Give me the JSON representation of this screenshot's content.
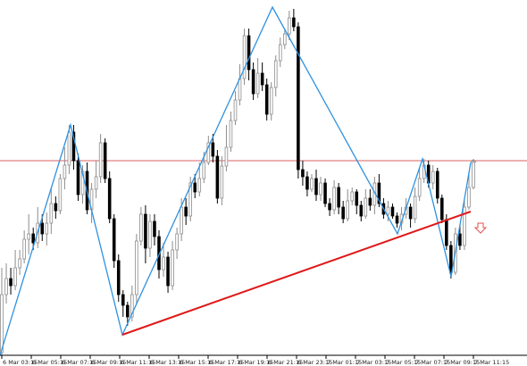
{
  "chart_data": {
    "type": "candlestick",
    "x_tick_labels": [
      "6 Mar 03:15",
      "6 Mar 05:15",
      "6 Mar 07:15",
      "6 Mar 09:15",
      "6 Mar 11:15",
      "6 Mar 13:15",
      "6 Mar 15:15",
      "6 Mar 17:15",
      "6 Mar 19:15",
      "6 Mar 21:15",
      "6 Mar 23:15",
      "7 Mar 01:15",
      "7 Mar 03:15",
      "7 Mar 05:15",
      "7 Mar 07:15",
      "7 Mar 09:15",
      "7 Mar 11:15"
    ],
    "ylim": [
      0,
      410
    ],
    "candles": [
      [
        395,
        330,
        400,
        300
      ],
      [
        330,
        312,
        340,
        295
      ],
      [
        312,
        320,
        330,
        300
      ],
      [
        320,
        300,
        325,
        280
      ],
      [
        300,
        290,
        308,
        280
      ],
      [
        290,
        268,
        295,
        258
      ],
      [
        268,
        262,
        285,
        240
      ],
      [
        262,
        272,
        280,
        255
      ],
      [
        272,
        250,
        278,
        232
      ],
      [
        250,
        262,
        270,
        240
      ],
      [
        262,
        250,
        275,
        238
      ],
      [
        250,
        228,
        262,
        210
      ],
      [
        228,
        236,
        245,
        220
      ],
      [
        236,
        200,
        240,
        195
      ],
      [
        200,
        185,
        212,
        165
      ],
      [
        185,
        148,
        195,
        140
      ],
      [
        148,
        180,
        190,
        140
      ],
      [
        180,
        218,
        225,
        172
      ],
      [
        218,
        192,
        228,
        185
      ],
      [
        192,
        235,
        240,
        182
      ],
      [
        235,
        212,
        250,
        205
      ],
      [
        212,
        198,
        222,
        180
      ],
      [
        198,
        160,
        205,
        150
      ],
      [
        160,
        200,
        205,
        155
      ],
      [
        200,
        245,
        250,
        192
      ],
      [
        245,
        292,
        300,
        240
      ],
      [
        292,
        330,
        338,
        285
      ],
      [
        330,
        342,
        355,
        325
      ],
      [
        342,
        355,
        365,
        338
      ],
      [
        355,
        330,
        360,
        320
      ],
      [
        330,
        270,
        340,
        262
      ],
      [
        270,
        240,
        275,
        232
      ],
      [
        240,
        278,
        295,
        230
      ],
      [
        278,
        248,
        288,
        240
      ],
      [
        248,
        265,
        275,
        240
      ],
      [
        265,
        302,
        312,
        258
      ],
      [
        302,
        288,
        310,
        272
      ],
      [
        288,
        320,
        328,
        282
      ],
      [
        320,
        280,
        325,
        270
      ],
      [
        280,
        262,
        290,
        255
      ],
      [
        262,
        232,
        270,
        222
      ],
      [
        232,
        242,
        252,
        222
      ],
      [
        242,
        205,
        248,
        198
      ],
      [
        205,
        215,
        222,
        195
      ],
      [
        215,
        200,
        220,
        182
      ],
      [
        200,
        182,
        205,
        170
      ],
      [
        182,
        160,
        185,
        152
      ],
      [
        160,
        175,
        182,
        150
      ],
      [
        175,
        222,
        228,
        168
      ],
      [
        222,
        186,
        230,
        175
      ],
      [
        186,
        165,
        192,
        140
      ],
      [
        165,
        135,
        170,
        125
      ],
      [
        135,
        112,
        140,
        102
      ],
      [
        112,
        88,
        118,
        72
      ],
      [
        88,
        40,
        95,
        32
      ],
      [
        40,
        78,
        90,
        32
      ],
      [
        78,
        105,
        112,
        70
      ],
      [
        105,
        82,
        110,
        65
      ],
      [
        82,
        95,
        102,
        70
      ],
      [
        95,
        128,
        135,
        88
      ],
      [
        128,
        98,
        135,
        92
      ],
      [
        98,
        68,
        108,
        62
      ],
      [
        68,
        50,
        75,
        42
      ],
      [
        50,
        38,
        55,
        32
      ],
      [
        38,
        20,
        45,
        12
      ],
      [
        20,
        30,
        35,
        10
      ],
      [
        30,
        190,
        200,
        25
      ],
      [
        190,
        198,
        208,
        180
      ],
      [
        198,
        212,
        220,
        192
      ],
      [
        212,
        200,
        215,
        195
      ],
      [
        200,
        218,
        225,
        190
      ],
      [
        218,
        205,
        225,
        198
      ],
      [
        205,
        228,
        232,
        200
      ],
      [
        228,
        235,
        242,
        222
      ],
      [
        235,
        210,
        240,
        202
      ],
      [
        210,
        232,
        240,
        205
      ],
      [
        232,
        245,
        250,
        225
      ],
      [
        245,
        225,
        248,
        212
      ],
      [
        225,
        215,
        230,
        210
      ],
      [
        215,
        230,
        240,
        212
      ],
      [
        230,
        242,
        248,
        225
      ],
      [
        242,
        222,
        245,
        212
      ],
      [
        222,
        230,
        236,
        212
      ],
      [
        230,
        205,
        240,
        198
      ],
      [
        205,
        228,
        232,
        195
      ],
      [
        228,
        240,
        245,
        222
      ],
      [
        240,
        232,
        248,
        225
      ],
      [
        232,
        242,
        245,
        228
      ],
      [
        242,
        250,
        255,
        238
      ],
      [
        250,
        240,
        258,
        232
      ],
      [
        240,
        232,
        245,
        222
      ],
      [
        232,
        245,
        255,
        228
      ],
      [
        245,
        220,
        250,
        210
      ],
      [
        220,
        200,
        225,
        188
      ],
      [
        200,
        185,
        205,
        178
      ],
      [
        185,
        205,
        210,
        180
      ],
      [
        205,
        192,
        212,
        185
      ],
      [
        192,
        222,
        228,
        188
      ],
      [
        222,
        246,
        250,
        218
      ],
      [
        246,
        275,
        280,
        240
      ],
      [
        275,
        305,
        312,
        270
      ],
      [
        305,
        262,
        308,
        255
      ],
      [
        262,
        275,
        280,
        252
      ],
      [
        275,
        232,
        280,
        225
      ],
      [
        232,
        210,
        235,
        195
      ],
      [
        210,
        182,
        212,
        178
      ]
    ],
    "zigzag": [
      [
        0,
        398
      ],
      [
        79,
        140
      ],
      [
        137,
        375
      ],
      [
        305,
        8
      ],
      [
        445,
        262
      ],
      [
        473,
        178
      ],
      [
        505,
        310
      ],
      [
        527,
        182
      ]
    ],
    "horizontal_level": 180,
    "trend_line": {
      "start": [
        137,
        375
      ],
      "end": [
        527,
        237
      ]
    },
    "colors": {
      "candle_bull_fill": "#ffffff",
      "candle_bull_stroke": "#8c8c8c",
      "candle_bear_fill": "#000000",
      "zigzag": "#2f92e0",
      "level_line": "#d86060",
      "trend_line": "#e01818",
      "arrow": "#e05050",
      "axis": "#000000"
    }
  }
}
